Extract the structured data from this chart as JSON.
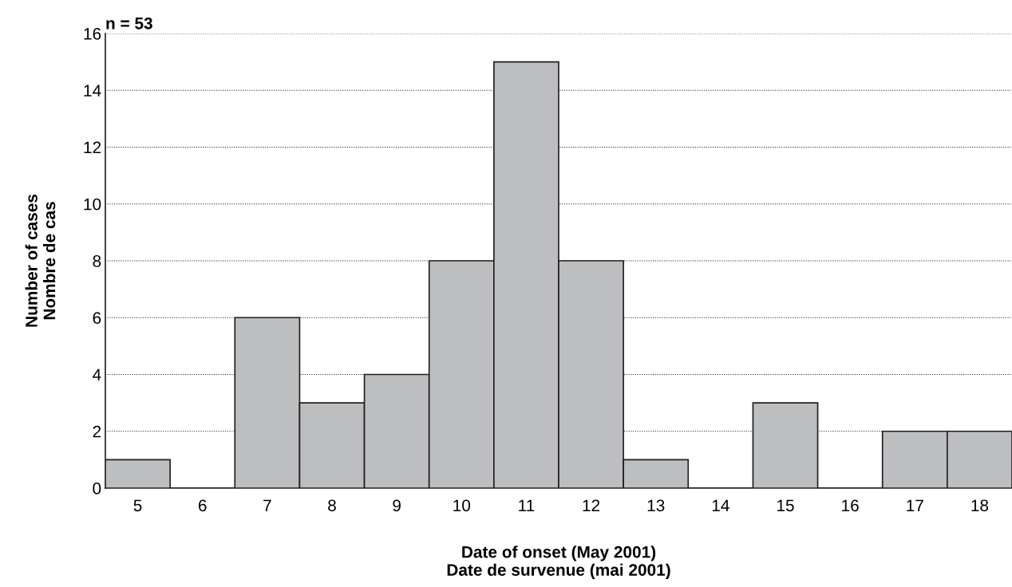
{
  "chart_data": {
    "type": "bar",
    "title": "n = 53",
    "xlabel": "Date of onset (May 2001)\nDate de survenue (mai 2001)",
    "ylabel": "Number of cases\nNombre de cas",
    "categories": [
      "5",
      "6",
      "7",
      "8",
      "9",
      "10",
      "11",
      "12",
      "13",
      "14",
      "15",
      "16",
      "17",
      "18"
    ],
    "values": [
      1,
      0,
      6,
      3,
      4,
      8,
      15,
      8,
      1,
      0,
      3,
      0,
      2,
      2
    ],
    "color": "#bcbec0",
    "ylim": [
      0,
      16
    ],
    "yticks": [
      0,
      2,
      4,
      6,
      8,
      10,
      12,
      14,
      16
    ],
    "grid": "y"
  }
}
